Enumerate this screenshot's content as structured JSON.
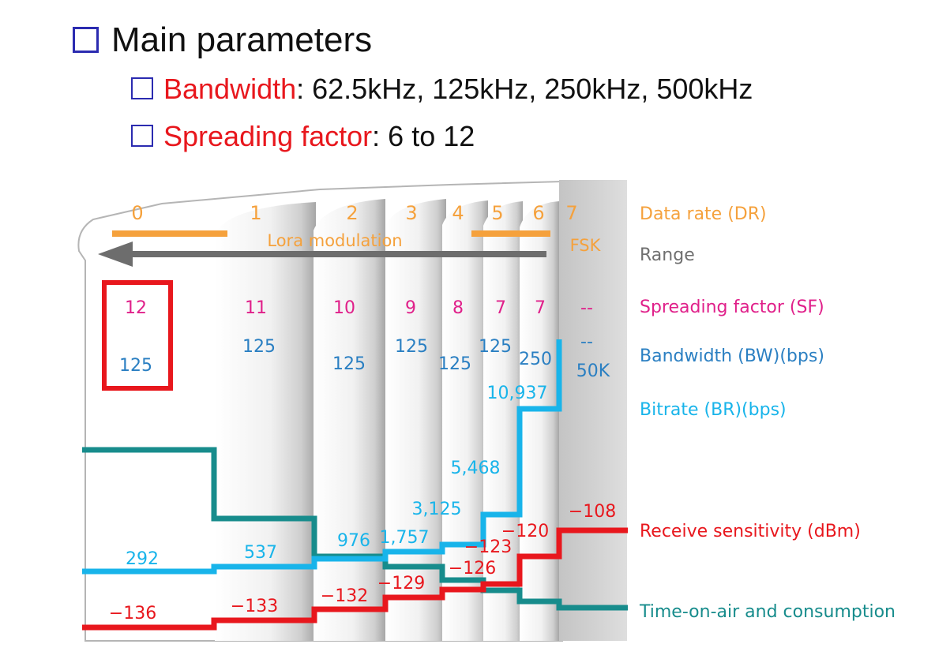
{
  "header": {
    "main_title": "Main parameters",
    "bandwidth_label": "Bandwidth",
    "bandwidth_values": ": 62.5kHz, 125kHz, 250kHz, 500kHz",
    "sf_label": "Spreading factor",
    "sf_values": ": 6 to 12"
  },
  "diagram": {
    "data_rates": [
      "0",
      "1",
      "2",
      "3",
      "4",
      "5",
      "6",
      "7"
    ],
    "lora_label": "Lora modulation",
    "fsk_label": "FSK",
    "spreading_factors": [
      "12",
      "11",
      "10",
      "9",
      "8",
      "7",
      "7",
      "--"
    ],
    "bandwidths": [
      "125",
      "125",
      "125",
      "125",
      "125",
      "125",
      "250",
      "--"
    ],
    "fsk_bitrate": "50K",
    "bitrates": [
      "292",
      "537",
      "976",
      "1,757",
      "3,125",
      "5,468",
      "10,937"
    ],
    "sensitivities": [
      "−136",
      "−133",
      "−132",
      "−129",
      "−126",
      "−123",
      "−120",
      "−108"
    ],
    "legend": {
      "data_rate": "Data rate (DR)",
      "range": "Range",
      "spreading_factor": "Spreading factor (SF)",
      "bandwidth": "Bandwidth (BW)(bps)",
      "bitrate": "Bitrate (BR)(bps)",
      "sensitivity": "Receive sensitivity (dBm)",
      "time_on_air": "Time-on-air and consumption"
    },
    "colors": {
      "orange": "#f5a13c",
      "magenta": "#e0208a",
      "blue": "#2a7fc2",
      "cyan": "#18b4ea",
      "red": "#e8171d",
      "teal": "#178c8c",
      "gray": "#6f6f6f",
      "highlight_box": "#e8171d"
    }
  }
}
